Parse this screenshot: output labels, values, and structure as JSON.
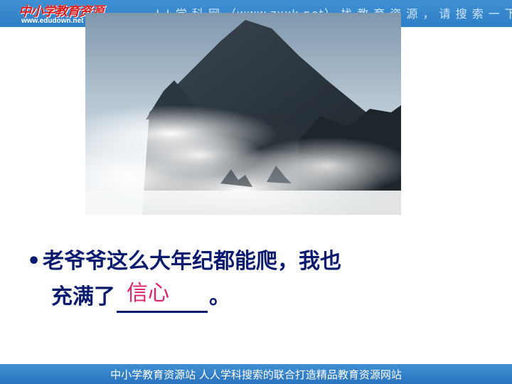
{
  "header": {
    "logo_text": "中小学教育资源",
    "site_url": "www.edudown.net",
    "banner_text": "ǂ ǂ 学 科 网 （www.zxxk.net） 找 教 育 资 源 ， 请 搜 索 一 下"
  },
  "slide": {
    "bullet": "•",
    "line1": "老爷爷这么大年纪都能爬，我也",
    "line2_prefix": "充满了",
    "answer": "信心",
    "line2_suffix": "。"
  },
  "footer": {
    "text": "中小学教育资源站  人人学科搜索的联合打造精品教育资源网站"
  }
}
